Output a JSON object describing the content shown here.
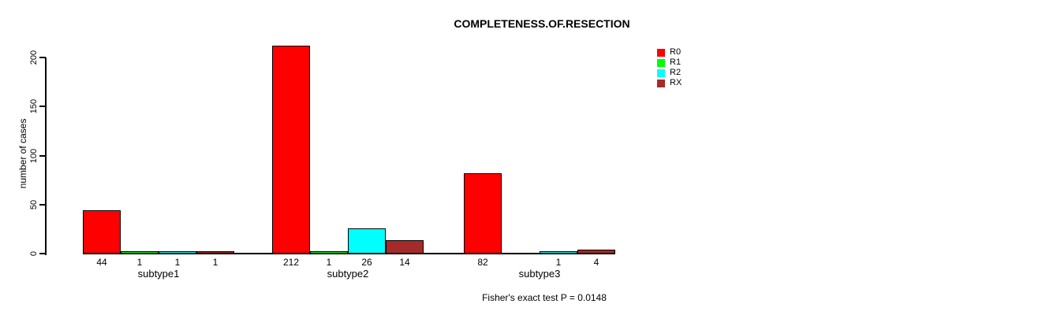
{
  "chart_data": {
    "type": "bar",
    "title": "COMPLETENESS.OF.RESECTION",
    "ylabel": "number of cases",
    "xlabel": "",
    "categories": [
      "subtype1",
      "subtype2",
      "subtype3"
    ],
    "series": [
      {
        "name": "R0",
        "color": "#FF0000",
        "values": [
          44,
          212,
          82
        ]
      },
      {
        "name": "R1",
        "color": "#00FF00",
        "values": [
          1,
          1,
          0
        ]
      },
      {
        "name": "R2",
        "color": "#00FFFF",
        "values": [
          1,
          26,
          1
        ]
      },
      {
        "name": "RX",
        "color": "#A52A2A",
        "values": [
          1,
          14,
          4
        ]
      }
    ],
    "bar_labels": [
      [
        "44",
        "1",
        "1",
        "1"
      ],
      [
        "212",
        "1",
        "26",
        "14"
      ],
      [
        "82",
        "",
        "1",
        "4"
      ]
    ],
    "yticks": [
      0,
      50,
      100,
      150,
      200
    ],
    "ylim": [
      0,
      212
    ],
    "grid": false,
    "legend_position": "right",
    "annotation": "Fisher's exact test P = 0.0148"
  }
}
